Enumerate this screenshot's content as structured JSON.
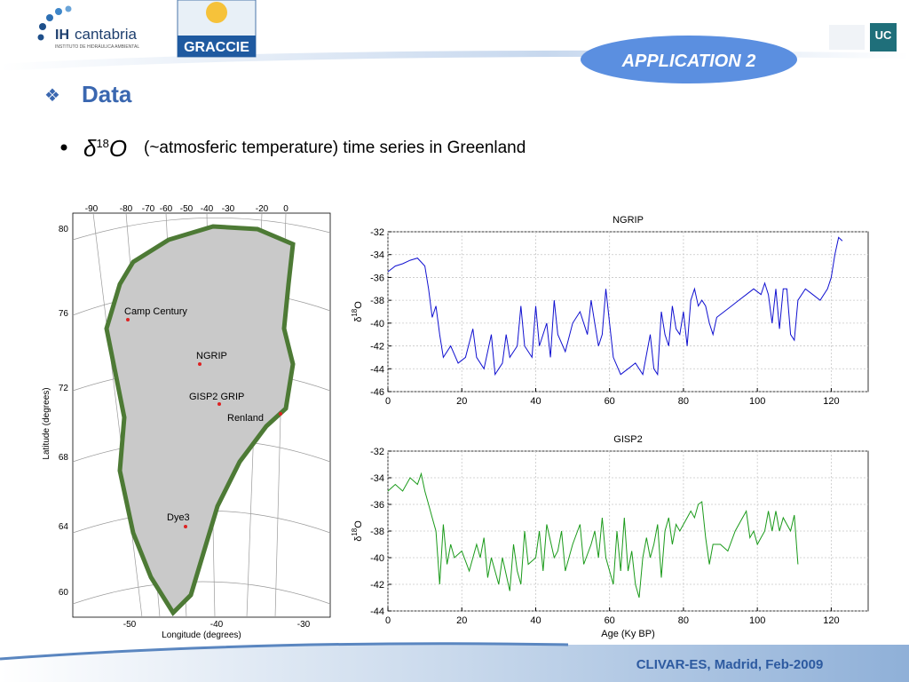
{
  "header": {
    "logo_ih": "IH",
    "logo_name": "cantabria",
    "logo_sub": "INSTITUTO DE HIDRÁULICA AMBIENTAL",
    "logo_graccie": "GRACCIE",
    "logo_uc": "UC",
    "badge": "APPLICATION 2"
  },
  "section": "Data",
  "bullet": {
    "symbol": "δ",
    "superscript": "18",
    "letter": "O",
    "text": "(~atmosferic temperature) time series in Greenland"
  },
  "map": {
    "top_ticks": [
      -90,
      -80,
      -70,
      -60,
      -50,
      -40,
      -30,
      -20,
      0
    ],
    "bottom_ticks": [
      -50,
      -40,
      -30
    ],
    "left_ticks": [
      80,
      76,
      72,
      68,
      64,
      60
    ],
    "xlabel": "Longitude (degrees)",
    "ylabel": "Latitude (degrees)",
    "sites": [
      "Camp Century",
      "NGRIP",
      "GISP2 GRIP",
      "Renland",
      "Dye3"
    ]
  },
  "chart_data": [
    {
      "type": "line",
      "title": "NGRIP",
      "ylabel": {
        "symbol": "δ",
        "superscript": "18",
        "letter": "O"
      },
      "xlim": [
        0,
        130
      ],
      "xticks": [
        0,
        20,
        40,
        60,
        80,
        100,
        120
      ],
      "ylim": [
        -46,
        -32
      ],
      "yticks": [
        -32,
        -34,
        -36,
        -38,
        -40,
        -42,
        -44,
        -46
      ],
      "grid": true,
      "series": [
        {
          "color": "#1010d0",
          "x": [
            0,
            2,
            4,
            6,
            8,
            10,
            11,
            12,
            13,
            14,
            15,
            17,
            19,
            21,
            23,
            24,
            26,
            28,
            29,
            31,
            32,
            33,
            35,
            36,
            37,
            39,
            40,
            41,
            43,
            44,
            45,
            46,
            48,
            50,
            52,
            54,
            55,
            56,
            57,
            58,
            59,
            60,
            61,
            63,
            65,
            67,
            69,
            71,
            72,
            73,
            74,
            75,
            76,
            77,
            78,
            79,
            80,
            81,
            82,
            83,
            84,
            85,
            86,
            87,
            88,
            89,
            91,
            93,
            95,
            97,
            99,
            101,
            102,
            103,
            104,
            105,
            106,
            107,
            108,
            109,
            110,
            111,
            113,
            115,
            117,
            119,
            120,
            121,
            122,
            123
          ],
          "values": [
            -35.5,
            -35,
            -34.8,
            -34.5,
            -34.3,
            -35,
            -37,
            -39.5,
            -38.5,
            -41,
            -43,
            -42,
            -43.5,
            -43,
            -40.5,
            -43,
            -44,
            -41,
            -44.5,
            -43.5,
            -41,
            -43,
            -42,
            -38.5,
            -42,
            -43,
            -38.5,
            -42,
            -40,
            -43,
            -38,
            -41,
            -42.5,
            -40,
            -39,
            -41,
            -38,
            -40,
            -42,
            -41,
            -37,
            -40,
            -43,
            -44.5,
            -44,
            -43.5,
            -44.5,
            -41,
            -44,
            -44.5,
            -39,
            -41,
            -42,
            -38.5,
            -40.5,
            -41,
            -39,
            -42,
            -38,
            -37,
            -38.5,
            -38,
            -38.5,
            -40,
            -41,
            -39.5,
            -39,
            -38.5,
            -38,
            -37.5,
            -37,
            -37.5,
            -36.5,
            -37.5,
            -40,
            -37,
            -40.5,
            -37,
            -37,
            -41,
            -41.5,
            -38,
            -37,
            -37.5,
            -38,
            -37,
            -36,
            -34,
            -32.5,
            -32.8
          ]
        }
      ]
    },
    {
      "type": "line",
      "title": "GISP2",
      "xlabel": "Age (Ky BP)",
      "ylabel": {
        "symbol": "δ",
        "superscript": "18",
        "letter": "O"
      },
      "xlim": [
        0,
        130
      ],
      "xticks": [
        0,
        20,
        40,
        60,
        80,
        100,
        120
      ],
      "ylim": [
        -44,
        -32
      ],
      "yticks": [
        -32,
        -34,
        -36,
        -38,
        -40,
        -42,
        -44
      ],
      "grid": true,
      "series": [
        {
          "color": "#1a9a1a",
          "x": [
            0,
            2,
            4,
            6,
            8,
            9,
            10,
            11,
            12,
            13,
            14,
            15,
            16,
            17,
            18,
            20,
            22,
            24,
            25,
            26,
            27,
            28,
            30,
            31,
            33,
            34,
            35,
            36,
            37,
            38,
            40,
            41,
            42,
            43,
            45,
            46,
            47,
            48,
            50,
            52,
            53,
            55,
            56,
            57,
            58,
            59,
            61,
            62,
            63,
            64,
            65,
            66,
            67,
            68,
            69,
            70,
            71,
            72,
            73,
            74,
            75,
            76,
            77,
            78,
            79,
            81,
            82,
            83,
            84,
            85,
            86,
            87,
            88,
            90,
            92,
            94,
            96,
            97,
            98,
            99,
            100,
            101,
            102,
            103,
            104,
            105,
            106,
            107,
            108,
            109,
            110,
            111
          ],
          "values": [
            -35,
            -34.5,
            -35,
            -34,
            -34.5,
            -33.7,
            -35,
            -36,
            -37,
            -38,
            -42,
            -37.5,
            -40.5,
            -39,
            -40,
            -39.5,
            -41,
            -39,
            -40,
            -38.5,
            -41.5,
            -40,
            -42,
            -40,
            -42.5,
            -39,
            -41,
            -42,
            -38,
            -40.5,
            -40,
            -38,
            -41,
            -37.5,
            -40,
            -39.5,
            -38,
            -41,
            -39,
            -37.5,
            -40.5,
            -39,
            -38,
            -40,
            -37,
            -40,
            -42,
            -38,
            -41,
            -37,
            -41,
            -39.5,
            -42,
            -43,
            -40,
            -38.5,
            -40,
            -39,
            -37.5,
            -41.5,
            -38,
            -37,
            -39,
            -37.5,
            -38,
            -37,
            -36.5,
            -37,
            -36,
            -35.8,
            -38.5,
            -40.5,
            -39,
            -39,
            -39.5,
            -38,
            -37,
            -36.5,
            -38.5,
            -38,
            -39,
            -38.5,
            -38,
            -36.5,
            -38,
            -36.5,
            -38,
            -37,
            -37.5,
            -38,
            -36.8,
            -40.5
          ]
        }
      ]
    }
  ],
  "footer": "CLIVAR-ES, Madrid, Feb-2009"
}
